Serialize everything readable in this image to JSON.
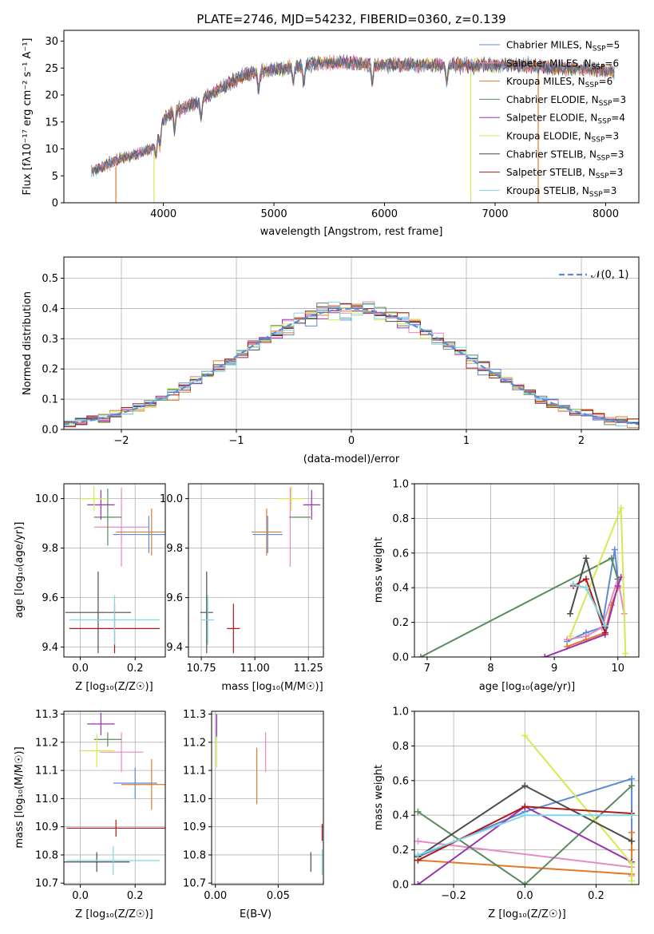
{
  "colors": {
    "Chabrier MILES": "#5b8bd8",
    "Salpeter MILES": "#e78ac3",
    "Kroupa MILES": "#e07a2a",
    "Chabrier ELODIE": "#5a8a5e",
    "Salpeter ELODIE": "#9b30b0",
    "Kroupa ELODIE": "#d4ea52",
    "Chabrier STELIB": "#4d4d4d",
    "Salpeter STELIB": "#b01818",
    "Kroupa STELIB": "#80d6e4",
    "normal": "#5b8bd8",
    "grid": "#b0b0b0"
  },
  "chart_data": [
    {
      "type": "line",
      "title": "PLATE=2746, MJD=54232, FIBERID=0360, z=0.139",
      "xlabel": "wavelength [Angstrom, rest frame]",
      "ylabel": "Flux [fλ10⁻¹⁷ erg cm⁻² s⁻¹ A⁻¹]",
      "xlim": [
        3100,
        8300
      ],
      "ylim": [
        0,
        32
      ],
      "xticks": [
        4000,
        5000,
        6000,
        7000,
        8000
      ],
      "yticks": [
        0,
        5,
        10,
        15,
        20,
        25,
        30
      ],
      "grid": false,
      "legend_placement": "top-right",
      "legend": [
        "Chabrier MILES, N_SSP=5",
        "Salpeter MILES, N_SSP=6",
        "Kroupa MILES, N_SSP=6",
        "Chabrier ELODIE, N_SSP=3",
        "Salpeter ELODIE, N_SSP=4",
        "Kroupa ELODIE, N_SSP=3",
        "Chabrier STELIB, N_SSP=3",
        "Salpeter STELIB, N_SSP=3",
        "Kroupa STELIB, N_SSP=3"
      ],
      "continuum": {
        "x": [
          3350,
          3600,
          3750,
          3900,
          4000,
          4100,
          4300,
          4500,
          4700,
          4900,
          5100,
          5300,
          5500,
          5700,
          5900,
          6100,
          6300,
          6500,
          6700,
          6900,
          7100,
          7300,
          7500,
          7700,
          7900,
          8080
        ],
        "y": [
          5.8,
          8.0,
          9.0,
          10.0,
          15.5,
          17.0,
          18.5,
          21.0,
          23.5,
          24.5,
          25.0,
          25.5,
          26.0,
          26.0,
          25.5,
          25.8,
          25.5,
          25.5,
          25.5,
          25.5,
          25.5,
          25.5,
          25.0,
          25.0,
          24.8,
          24.3
        ]
      },
      "drops": [
        {
          "model": "Kroupa MILES",
          "x": 3570,
          "to": 0
        },
        {
          "model": "Kroupa ELODIE",
          "x": 3915,
          "to": 0
        },
        {
          "model": "Kroupa ELODIE",
          "x": 6780,
          "to": 0
        },
        {
          "model": "Kroupa MILES",
          "x": 7390,
          "to": 0
        }
      ]
    },
    {
      "type": "line",
      "xlabel": "(data-model)/error",
      "ylabel": "Normed distribution",
      "xlim": [
        -2.5,
        2.5
      ],
      "ylim": [
        0,
        0.57
      ],
      "xticks": [
        -2,
        -1,
        0,
        1,
        2
      ],
      "yticks": [
        0.0,
        0.1,
        0.2,
        0.3,
        0.4,
        0.5
      ],
      "grid": true,
      "legend_placement": "top-right",
      "legend": [
        "𝒩(0, 1)"
      ],
      "bin_width": 0.1,
      "normal": {
        "mean": 0,
        "sigma": 1
      }
    },
    {
      "type": "scatter",
      "xlabel": "Z [log₁₀(Z/Z☉)]",
      "ylabel": "age  [log₁₀(age/yr)]",
      "xlim": [
        -0.06,
        0.31
      ],
      "ylim": [
        9.36,
        10.06
      ],
      "xticks": [
        0.0,
        0.2
      ],
      "yticks": [
        9.4,
        9.6,
        9.8,
        10.0
      ],
      "points": [
        {
          "model": "Chabrier MILES",
          "x": 0.25,
          "y": 9.855,
          "xerr": 0.13,
          "yerr": 0.075
        },
        {
          "model": "Salpeter MILES",
          "x": 0.15,
          "y": 9.885,
          "xerr": 0.1,
          "yerr": 0.16
        },
        {
          "model": "Kroupa MILES",
          "x": 0.26,
          "y": 9.865,
          "xerr": 0.13,
          "yerr": 0.095
        },
        {
          "model": "Chabrier ELODIE",
          "x": 0.1,
          "y": 9.925,
          "xerr": 0.05,
          "yerr": 0.115
        },
        {
          "model": "Salpeter ELODIE",
          "x": 0.075,
          "y": 9.975,
          "xerr": 0.05,
          "yerr": 0.06
        },
        {
          "model": "Kroupa ELODIE",
          "x": 0.05,
          "y": 10.0,
          "xerr": 0.05,
          "yerr": 0.05
        },
        {
          "model": "Chabrier STELIB",
          "x": 0.065,
          "y": 9.54,
          "xerr": 0.12,
          "yerr": 0.165
        },
        {
          "model": "Salpeter STELIB",
          "x": 0.125,
          "y": 9.475,
          "xerr": 0.165,
          "yerr": 0.1
        },
        {
          "model": "Kroupa STELIB",
          "x": 0.125,
          "y": 9.51,
          "xerr": 0.165,
          "yerr": 0.1
        }
      ]
    },
    {
      "type": "scatter",
      "xlabel": "mass [log₁₀(M/M☉)]",
      "ylabel": "",
      "xlim": [
        10.69,
        11.32
      ],
      "ylim": [
        9.36,
        10.06
      ],
      "xticks": [
        10.75,
        11.0,
        11.25
      ],
      "yticks": [
        9.4,
        9.6,
        9.8,
        10.0
      ],
      "points": [
        {
          "model": "Chabrier MILES",
          "x": 11.06,
          "y": 9.855,
          "xerr": 0.07,
          "yerr": 0.075
        },
        {
          "model": "Salpeter MILES",
          "x": 11.165,
          "y": 9.885,
          "xerr": 0.0,
          "yerr": 0.16
        },
        {
          "model": "Kroupa MILES",
          "x": 11.055,
          "y": 9.865,
          "xerr": 0.07,
          "yerr": 0.095
        },
        {
          "model": "Chabrier ELODIE",
          "x": 11.21,
          "y": 9.925,
          "xerr": 0.05,
          "yerr": 0.0
        },
        {
          "model": "Salpeter ELODIE",
          "x": 11.265,
          "y": 9.975,
          "xerr": 0.04,
          "yerr": 0.06
        },
        {
          "model": "Kroupa ELODIE",
          "x": 11.17,
          "y": 10.0,
          "xerr": 0.06,
          "yerr": 0.05
        },
        {
          "model": "Chabrier STELIB",
          "x": 10.775,
          "y": 9.54,
          "xerr": 0.03,
          "yerr": 0.165
        },
        {
          "model": "Salpeter STELIB",
          "x": 10.9,
          "y": 9.475,
          "xerr": 0.03,
          "yerr": 0.1
        },
        {
          "model": "Kroupa STELIB",
          "x": 10.78,
          "y": 9.51,
          "xerr": 0.03,
          "yerr": 0.1
        }
      ]
    },
    {
      "type": "line",
      "xlabel": "age  [log₁₀(age/yr)]",
      "ylabel": "mass weight",
      "xlim": [
        6.8,
        10.33
      ],
      "ylim": [
        0,
        1.0
      ],
      "xticks": [
        7,
        8,
        9,
        10
      ],
      "yticks": [
        0.0,
        0.2,
        0.4,
        0.6,
        0.8,
        1.0
      ],
      "grid": true,
      "series": [
        {
          "model": "Chabrier MILES",
          "x": [
            9.2,
            9.5,
            9.75,
            9.95,
            10.0
          ],
          "y": [
            0.09,
            0.14,
            0.17,
            0.62,
            0.45
          ]
        },
        {
          "model": "Salpeter MILES",
          "x": [
            9.2,
            9.5,
            9.75,
            10.0,
            10.1
          ],
          "y": [
            0.1,
            0.12,
            0.17,
            0.45,
            0.25
          ]
        },
        {
          "model": "Kroupa MILES",
          "x": [
            9.2,
            9.5,
            9.8,
            9.9,
            10.0
          ],
          "y": [
            0.06,
            0.1,
            0.14,
            0.3,
            0.4
          ]
        },
        {
          "model": "Chabrier ELODIE",
          "x": [
            6.9,
            9.9,
            10.0
          ],
          "y": [
            0.0,
            0.57,
            0.45
          ]
        },
        {
          "model": "Salpeter ELODIE",
          "x": [
            8.85,
            9.8,
            10.0,
            10.05
          ],
          "y": [
            0.0,
            0.13,
            0.41,
            0.46
          ]
        },
        {
          "model": "Kroupa ELODIE",
          "x": [
            9.25,
            10.05,
            10.12
          ],
          "y": [
            0.12,
            0.86,
            0.02
          ]
        },
        {
          "model": "Chabrier STELIB",
          "x": [
            9.25,
            9.5,
            9.8
          ],
          "y": [
            0.25,
            0.57,
            0.17
          ]
        },
        {
          "model": "Salpeter STELIB",
          "x": [
            9.3,
            9.5,
            9.8
          ],
          "y": [
            0.41,
            0.45,
            0.14
          ]
        },
        {
          "model": "Kroupa STELIB",
          "x": [
            9.3,
            9.5,
            9.8
          ],
          "y": [
            0.42,
            0.4,
            0.18
          ]
        }
      ]
    },
    {
      "type": "scatter",
      "xlabel": "Z [log₁₀(Z/Z☉)]",
      "ylabel": "mass [log₁₀(M/M☉)]",
      "xlim": [
        -0.06,
        0.31
      ],
      "ylim": [
        10.695,
        11.31
      ],
      "xticks": [
        0.0,
        0.2
      ],
      "yticks": [
        10.7,
        10.8,
        10.9,
        11.0,
        11.1,
        11.2,
        11.3
      ],
      "points": [
        {
          "model": "Chabrier MILES",
          "x": 0.2,
          "y": 11.055,
          "xerr": 0.08,
          "yerr": 0.055
        },
        {
          "model": "Salpeter MILES",
          "x": 0.15,
          "y": 11.165,
          "xerr": 0.08,
          "yerr": 0.07
        },
        {
          "model": "Kroupa MILES",
          "x": 0.26,
          "y": 11.05,
          "xerr": 0.11,
          "yerr": 0.09
        },
        {
          "model": "Chabrier ELODIE",
          "x": 0.1,
          "y": 11.21,
          "xerr": 0.05,
          "yerr": 0.025
        },
        {
          "model": "Salpeter ELODIE",
          "x": 0.075,
          "y": 11.265,
          "xerr": 0.05,
          "yerr": 0.04
        },
        {
          "model": "Kroupa ELODIE",
          "x": 0.06,
          "y": 11.17,
          "xerr": 0.065,
          "yerr": 0.06
        },
        {
          "model": "Chabrier STELIB",
          "x": 0.06,
          "y": 10.775,
          "xerr": 0.12,
          "yerr": 0.035
        },
        {
          "model": "Salpeter STELIB",
          "x": 0.13,
          "y": 10.895,
          "xerr": 0.18,
          "yerr": 0.03
        },
        {
          "model": "Kroupa STELIB",
          "x": 0.12,
          "y": 10.78,
          "xerr": 0.17,
          "yerr": 0.05
        }
      ]
    },
    {
      "type": "scatter",
      "xlabel": "E(B-V)",
      "ylabel": "",
      "xlim": [
        -0.003,
        0.086
      ],
      "ylim": [
        10.695,
        11.31
      ],
      "xticks": [
        0.0,
        0.05
      ],
      "yticks": [
        10.7,
        10.8,
        10.9,
        11.0,
        11.1,
        11.2,
        11.3
      ],
      "points": [
        {
          "model": "Chabrier MILES",
          "x": 0.001,
          "y": 11.255,
          "yerr": 0.045
        },
        {
          "model": "Salpeter MILES",
          "x": 0.04,
          "y": 11.165,
          "yerr": 0.07
        },
        {
          "model": "Kroupa MILES",
          "x": 0.033,
          "y": 11.08,
          "yerr": 0.1
        },
        {
          "model": "Kroupa ELODIE",
          "x": 0.001,
          "y": 11.17,
          "yerr": 0.06
        },
        {
          "model": "Salpeter ELODIE",
          "x": 0.001,
          "y": 11.26,
          "yerr": 0.04
        },
        {
          "model": "Chabrier STELIB",
          "x": 0.076,
          "y": 10.775,
          "yerr": 0.035
        },
        {
          "model": "Salpeter STELIB",
          "x": 0.085,
          "y": 10.88,
          "yerr": 0.03
        },
        {
          "model": "Kroupa STELIB",
          "x": 0.085,
          "y": 10.775,
          "yerr": 0.045
        }
      ]
    },
    {
      "type": "line",
      "xlabel": "Z [log₁₀(Z/Z☉)]",
      "ylabel": "mass weight",
      "xlim": [
        -0.31,
        0.32
      ],
      "ylim": [
        0,
        1.0
      ],
      "xticks": [
        -0.2,
        0.0,
        0.2
      ],
      "yticks": [
        0.0,
        0.2,
        0.4,
        0.6,
        0.8,
        1.0
      ],
      "grid": true,
      "series": [
        {
          "model": "Chabrier MILES",
          "x": [
            -0.3,
            0.0,
            0.3,
            0.3
          ],
          "y": [
            0.16,
            0.42,
            0.61,
            0.25
          ]
        },
        {
          "model": "Salpeter MILES",
          "x": [
            -0.3,
            0.3,
            0.3
          ],
          "y": [
            0.25,
            0.1,
            0.05
          ]
        },
        {
          "model": "Kroupa MILES",
          "x": [
            -0.3,
            0.3,
            0.3,
            0.3
          ],
          "y": [
            0.14,
            0.06,
            0.2,
            0.3
          ]
        },
        {
          "model": "Chabrier ELODIE",
          "x": [
            -0.3,
            0.0,
            0.3
          ],
          "y": [
            0.42,
            0.0,
            0.57
          ]
        },
        {
          "model": "Salpeter ELODIE",
          "x": [
            -0.3,
            0.0,
            0.3
          ],
          "y": [
            0.0,
            0.45,
            0.13
          ]
        },
        {
          "model": "Kroupa ELODIE",
          "x": [
            0.0,
            0.3,
            0.3
          ],
          "y": [
            0.86,
            0.12,
            0.02
          ]
        },
        {
          "model": "Chabrier STELIB",
          "x": [
            -0.3,
            0.0,
            0.3
          ],
          "y": [
            0.16,
            0.57,
            0.25
          ]
        },
        {
          "model": "Salpeter STELIB",
          "x": [
            -0.3,
            0.0,
            0.3
          ],
          "y": [
            0.14,
            0.45,
            0.41
          ]
        },
        {
          "model": "Kroupa STELIB",
          "x": [
            -0.3,
            0.0,
            0.3
          ],
          "y": [
            0.17,
            0.4,
            0.4
          ]
        }
      ]
    }
  ]
}
